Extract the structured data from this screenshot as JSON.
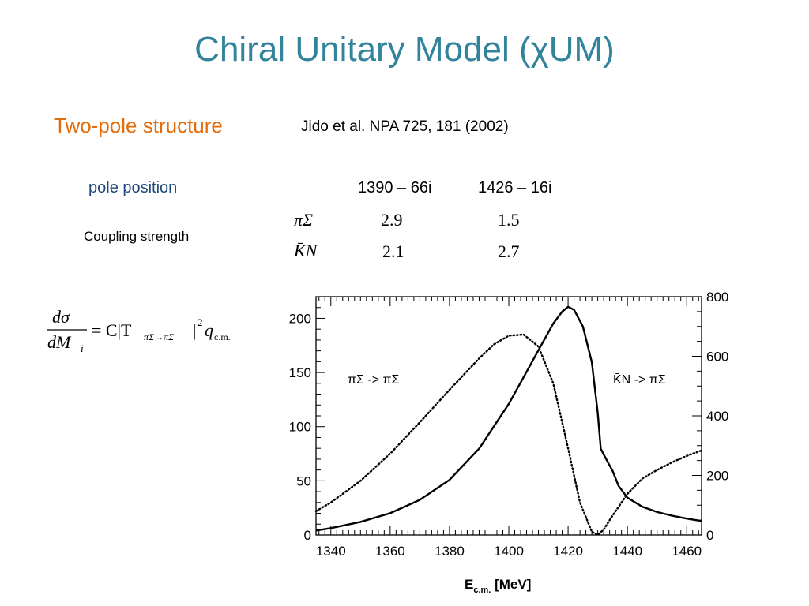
{
  "slide": {
    "title": "Chiral Unitary Model (χUM)",
    "subtitle": "Two-pole structure",
    "reference": "Jido et al. NPA 725, 181 (2002)",
    "pole_label": "pole position",
    "pole_1": "1390 – 66i",
    "pole_2": "1426 – 16i",
    "coupling_label": "Coupling strength",
    "channel_1": "πΣ",
    "channel_2": "K̄N",
    "coupling_pisigma_1": "2.9",
    "coupling_pisigma_2": "1.5",
    "coupling_kbarn_1": "2.1",
    "coupling_kbarn_2": "2.7",
    "formula": {
      "lhs_num": "dσ",
      "lhs_den": "dM",
      "lhs_den_sub": "i",
      "equals": "= C|T",
      "T_sub": "πΣ→πΣ",
      "abs_close": "|",
      "power": "2",
      "q": "q",
      "q_sub": "c.m."
    }
  },
  "chart_data": {
    "type": "line",
    "xlabel": "E",
    "xlabel_sub": "c.m.",
    "xlabel_unit": " [MeV]",
    "xlim": [
      1335,
      1465
    ],
    "ylim_left": [
      0,
      220
    ],
    "ylim_right": [
      0,
      800
    ],
    "x_ticks": [
      1340,
      1360,
      1380,
      1400,
      1420,
      1440,
      1460
    ],
    "y_ticks_left": [
      0,
      50,
      100,
      150,
      200
    ],
    "y_ticks_right": [
      0,
      200,
      400,
      600,
      800
    ],
    "annotations": [
      "πΣ -> πΣ",
      "K̄N -> πΣ"
    ],
    "series": [
      {
        "style": "dotted",
        "axis": "left",
        "x": [
          1335,
          1340,
          1350,
          1360,
          1370,
          1380,
          1390,
          1395,
          1400,
          1405,
          1410,
          1415,
          1420,
          1424,
          1428,
          1430,
          1432,
          1435,
          1440,
          1445,
          1450,
          1455,
          1460,
          1465
        ],
        "y": [
          22,
          30,
          50,
          75,
          104,
          134,
          163,
          176,
          184,
          185,
          174,
          140,
          80,
          30,
          3,
          0,
          5,
          18,
          38,
          52,
          60,
          67,
          73,
          78
        ]
      },
      {
        "style": "solid",
        "axis": "right",
        "x": [
          1335,
          1340,
          1350,
          1360,
          1370,
          1380,
          1390,
          1400,
          1405,
          1410,
          1415,
          1418,
          1420,
          1422,
          1425,
          1428,
          1430,
          1431,
          1432,
          1435,
          1437,
          1440,
          1445,
          1450,
          1455,
          1460,
          1465
        ],
        "y": [
          15,
          23,
          44,
          73,
          118,
          185,
          290,
          440,
          530,
          620,
          710,
          750,
          766,
          756,
          700,
          580,
          410,
          290,
          270,
          215,
          165,
          125,
          95,
          77,
          65,
          55,
          47
        ]
      }
    ]
  }
}
